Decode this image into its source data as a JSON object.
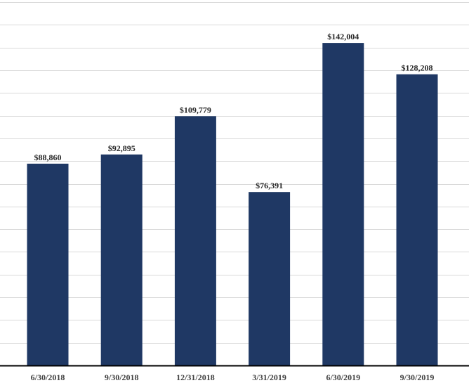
{
  "chart_data": {
    "type": "bar",
    "title": "",
    "xlabel": "",
    "ylabel": "",
    "categories": [
      "6/30/2018",
      "9/30/2018",
      "12/31/2018",
      "3/31/2019",
      "6/30/2019",
      "9/30/2019"
    ],
    "values": [
      88860,
      92895,
      109779,
      76391,
      142004,
      128208
    ],
    "value_labels": [
      "$88,860",
      "$92,895",
      "$109,779",
      "$76,391",
      "$142,004",
      "$128,208"
    ],
    "ylim": [
      0,
      160000
    ],
    "grid": true,
    "grid_step": 10000,
    "y_tick_labels_visible": false,
    "legend": "none",
    "colors": {
      "bar": "#1f3864",
      "grid": "#d9d9d9",
      "axis": "#000000"
    }
  }
}
